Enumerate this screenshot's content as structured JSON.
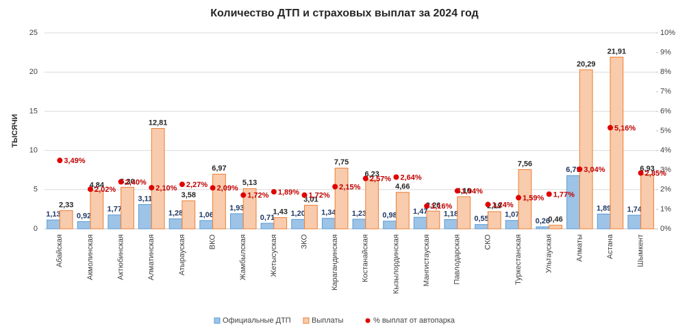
{
  "chart_data": {
    "type": "bar",
    "title": "Количество ДТП и страховых выплат за 2024 год",
    "y_label": "ТЫСЯЧИ",
    "categories": [
      "Абайская",
      "Акмолинская",
      "Актюбинская",
      "Алматинская",
      "Атырауская",
      "ВКО",
      "Жамбылская",
      "Жетысуская",
      "ЗКО",
      "Карагандинская",
      "Костанайская",
      "Кызылординская",
      "Мангистауская",
      "Павлодарская",
      "СКО",
      "Туркестанская",
      "Ультауская",
      "Алматы",
      "Астана",
      "Шымкент"
    ],
    "series": [
      {
        "name": "Официальные ДТП",
        "type": "bar",
        "color": "#9dc3e6",
        "stroke": "#5b9bd5",
        "values": [
          1.13,
          0.92,
          1.77,
          3.11,
          1.28,
          1.06,
          1.93,
          0.71,
          1.2,
          1.34,
          1.23,
          0.98,
          1.47,
          1.18,
          0.55,
          1.07,
          0.26,
          6.79,
          1.89,
          1.74
        ],
        "value_labels": [
          "1,13",
          "0,92",
          "1,77",
          "3,11",
          "1,28",
          "1,06",
          "1,93",
          "0,71",
          "1,20",
          "1,34",
          "1,23",
          "0,98",
          "1,47",
          "1,18",
          "0,55",
          "1,07",
          "0,26",
          "6,79",
          "1,89",
          "1,74"
        ]
      },
      {
        "name": "Выплаты",
        "type": "bar",
        "color": "#f8cbad",
        "stroke": "#ed7d31",
        "values": [
          2.33,
          4.84,
          5.3,
          12.81,
          3.58,
          6.97,
          5.13,
          1.43,
          3.01,
          7.75,
          6.23,
          4.66,
          2.26,
          4.1,
          2.19,
          7.56,
          0.46,
          20.29,
          21.91,
          6.93
        ],
        "value_labels": [
          "2,33",
          "4,84",
          "5,30",
          "12,81",
          "3,58",
          "6,97",
          "5,13",
          "1,43",
          "3,01",
          "7,75",
          "6,23",
          "4,66",
          "2,26",
          "4,10",
          "2,19",
          "7,56",
          "0,46",
          "20,29",
          "21,91",
          "6,93"
        ]
      },
      {
        "name": "% выплат от автопарка",
        "type": "scatter",
        "axis": "y2",
        "color": "#e00000",
        "values": [
          3.49,
          2.02,
          2.4,
          2.1,
          2.27,
          2.09,
          1.72,
          1.89,
          1.72,
          2.15,
          2.57,
          2.64,
          1.16,
          1.94,
          1.24,
          1.59,
          1.77,
          3.04,
          5.16,
          2.85
        ],
        "value_labels": [
          "3,49%",
          "2,02%",
          "2,40%",
          "2,10%",
          "2,27%",
          "2,09%",
          "1,72%",
          "1,89%",
          "1,72%",
          "2,15%",
          "2,57%",
          "2,64%",
          "1,16%",
          "1,94%",
          "1,24%",
          "1,59%",
          "1,77%",
          "3,04%",
          "5,16%",
          "2,85%"
        ]
      }
    ],
    "ylim": [
      0,
      25
    ],
    "yticks": [
      0,
      5,
      10,
      15,
      20,
      25
    ],
    "y2lim": [
      0,
      10
    ],
    "y2ticks": [
      {
        "value": 0,
        "label": "0%"
      },
      {
        "value": 1,
        "label": "1%"
      },
      {
        "value": 2,
        "label": "2%"
      },
      {
        "value": 3,
        "label": "3%"
      },
      {
        "value": 4,
        "label": "4%"
      },
      {
        "value": 5,
        "label": "5%"
      },
      {
        "value": 6,
        "label": "6%"
      },
      {
        "value": 7,
        "label": "7%"
      },
      {
        "value": 8,
        "label": "8%"
      },
      {
        "value": 9,
        "label": "9%"
      },
      {
        "value": 10,
        "label": "10%"
      }
    ],
    "grid": true,
    "legend": "bottom"
  }
}
